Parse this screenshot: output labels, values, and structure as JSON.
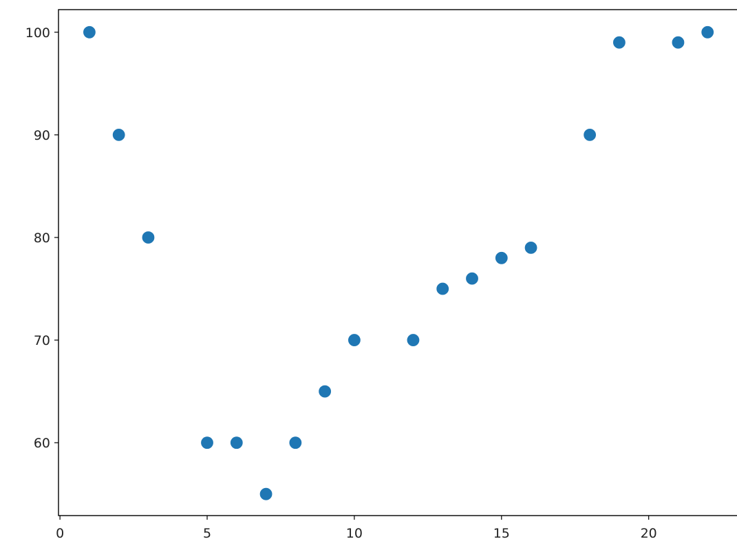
{
  "chart_data": {
    "type": "scatter",
    "title": "",
    "xlabel": "",
    "ylabel": "",
    "xlim": [
      -0.05,
      23
    ],
    "ylim": [
      52.9,
      102.2
    ],
    "xticks": [
      0,
      5,
      10,
      15,
      20
    ],
    "yticks": [
      60,
      70,
      80,
      90,
      100
    ],
    "grid": false,
    "marker_color": "#1f77b4",
    "points": [
      {
        "x": 1,
        "y": 100
      },
      {
        "x": 2,
        "y": 90
      },
      {
        "x": 3,
        "y": 80
      },
      {
        "x": 5,
        "y": 60
      },
      {
        "x": 6,
        "y": 60
      },
      {
        "x": 7,
        "y": 55
      },
      {
        "x": 8,
        "y": 60
      },
      {
        "x": 9,
        "y": 65
      },
      {
        "x": 10,
        "y": 70
      },
      {
        "x": 12,
        "y": 70
      },
      {
        "x": 13,
        "y": 75
      },
      {
        "x": 14,
        "y": 76
      },
      {
        "x": 15,
        "y": 78
      },
      {
        "x": 16,
        "y": 79
      },
      {
        "x": 18,
        "y": 90
      },
      {
        "x": 19,
        "y": 99
      },
      {
        "x": 21,
        "y": 99
      },
      {
        "x": 22,
        "y": 100
      }
    ]
  }
}
